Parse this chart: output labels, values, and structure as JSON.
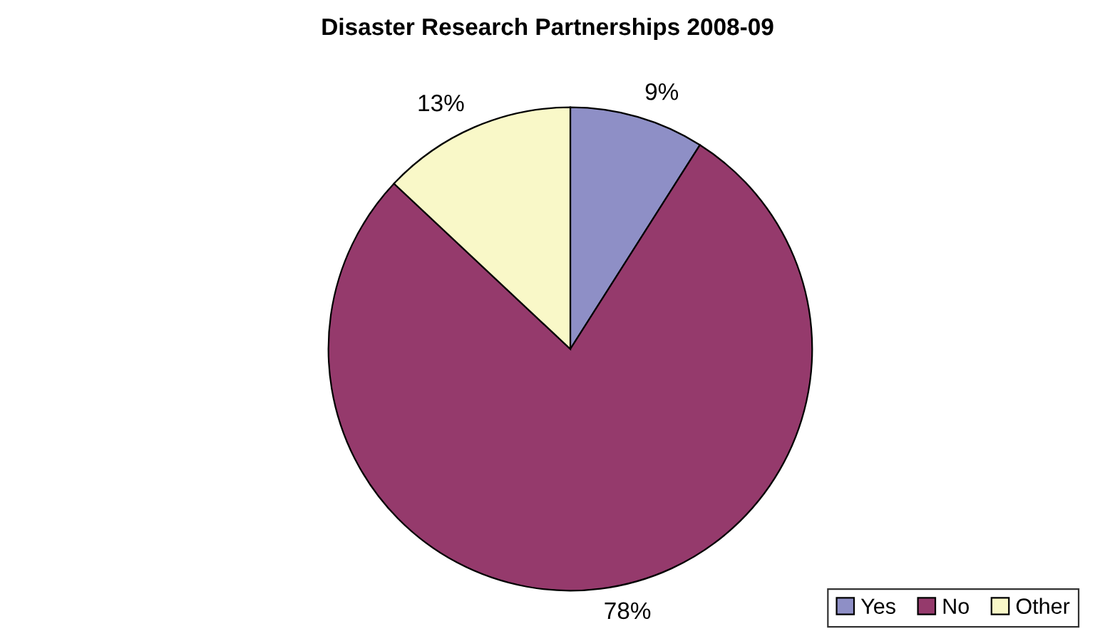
{
  "chart_data": {
    "type": "pie",
    "title": "Disaster Research Partnerships 2008-09",
    "categories": [
      "Yes",
      "No",
      "Other"
    ],
    "values": [
      9,
      78,
      13
    ],
    "colors": [
      "#8e8fc6",
      "#953a6c",
      "#f9f8c8"
    ],
    "value_labels": [
      "9%",
      "78%",
      "13%"
    ],
    "legend": "bottom right"
  }
}
